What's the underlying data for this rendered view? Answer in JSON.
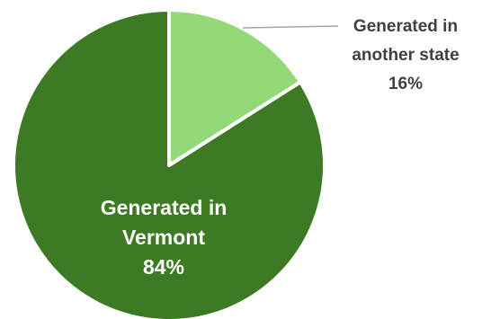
{
  "chart_data": {
    "type": "pie",
    "title": "",
    "slices": [
      {
        "label_lines": [
          "Generated in",
          "another state"
        ],
        "value": 16,
        "value_label": "16%",
        "color": "#92d977",
        "label_position": "outside-right"
      },
      {
        "label_lines": [
          "Generated in",
          "Vermont"
        ],
        "value": 84,
        "value_label": "84%",
        "color": "#3d7a24",
        "label_position": "inside"
      }
    ],
    "start_angle": "12 o'clock",
    "direction": "clockwise",
    "legend": "none"
  }
}
